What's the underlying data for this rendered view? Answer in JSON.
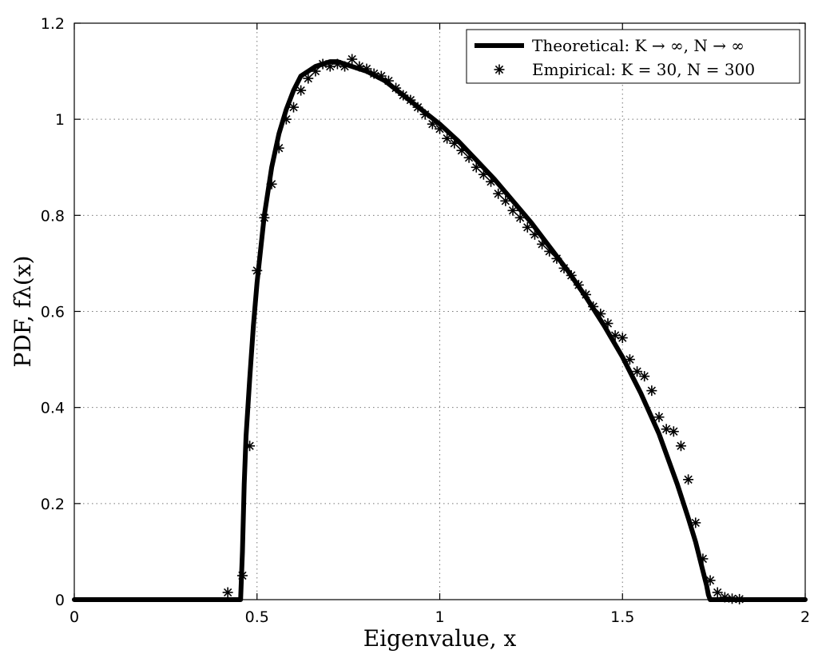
{
  "chart_data": {
    "type": "line",
    "title": "",
    "xlabel": "Eigenvalue, x",
    "ylabel": "PDF, fλ(x)",
    "xlim": [
      0,
      2
    ],
    "ylim": [
      0,
      1.2
    ],
    "xticks": [
      0,
      0.5,
      1,
      1.5,
      2
    ],
    "yticks": [
      0,
      0.2,
      0.4,
      0.6,
      0.8,
      1.0,
      1.2
    ],
    "xtick_labels": [
      "0",
      "0.5",
      "1",
      "1.5",
      "2"
    ],
    "ytick_labels": [
      "0",
      "0.2",
      "0.4",
      "0.6",
      "0.8",
      "1",
      "1.2"
    ],
    "grid": true,
    "legend_position": "top-right",
    "series": [
      {
        "name": "Theoretical: K → ∞, N → ∞",
        "style": "line",
        "color": "#000000",
        "x": [
          0,
          0.455,
          0.46,
          0.465,
          0.47,
          0.48,
          0.49,
          0.5,
          0.52,
          0.54,
          0.56,
          0.58,
          0.6,
          0.62,
          0.64,
          0.66,
          0.68,
          0.7,
          0.72,
          0.74,
          0.76,
          0.78,
          0.8,
          0.85,
          0.9,
          0.95,
          1.0,
          1.05,
          1.1,
          1.15,
          1.2,
          1.25,
          1.3,
          1.35,
          1.4,
          1.45,
          1.5,
          1.55,
          1.6,
          1.65,
          1.68,
          1.7,
          1.72,
          1.73,
          1.735,
          1.74,
          2.0
        ],
        "y": [
          0,
          0,
          0.1,
          0.24,
          0.34,
          0.46,
          0.57,
          0.66,
          0.8,
          0.9,
          0.97,
          1.02,
          1.06,
          1.09,
          1.1,
          1.11,
          1.115,
          1.12,
          1.12,
          1.115,
          1.11,
          1.105,
          1.1,
          1.08,
          1.05,
          1.02,
          0.99,
          0.955,
          0.915,
          0.875,
          0.83,
          0.785,
          0.735,
          0.685,
          0.63,
          0.57,
          0.505,
          0.43,
          0.345,
          0.24,
          0.17,
          0.12,
          0.06,
          0.03,
          0.01,
          0,
          0
        ]
      },
      {
        "name": "Empirical: K = 30, N = 300",
        "style": "marker",
        "marker": "asterisk",
        "color": "#000000",
        "x": [
          0.42,
          0.46,
          0.48,
          0.5,
          0.52,
          0.54,
          0.56,
          0.58,
          0.6,
          0.62,
          0.64,
          0.66,
          0.68,
          0.7,
          0.72,
          0.74,
          0.76,
          0.78,
          0.8,
          0.82,
          0.84,
          0.86,
          0.88,
          0.9,
          0.92,
          0.94,
          0.96,
          0.98,
          1.0,
          1.02,
          1.04,
          1.06,
          1.08,
          1.1,
          1.12,
          1.14,
          1.16,
          1.18,
          1.2,
          1.22,
          1.24,
          1.26,
          1.28,
          1.3,
          1.32,
          1.34,
          1.36,
          1.38,
          1.4,
          1.42,
          1.44,
          1.46,
          1.48,
          1.5,
          1.52,
          1.54,
          1.56,
          1.58,
          1.6,
          1.62,
          1.64,
          1.66,
          1.68,
          1.7,
          1.72,
          1.74,
          1.76,
          1.78,
          1.8,
          1.82
        ],
        "y": [
          0.015,
          0.05,
          0.32,
          0.685,
          0.795,
          0.865,
          0.94,
          1.0,
          1.025,
          1.06,
          1.085,
          1.1,
          1.115,
          1.11,
          1.115,
          1.11,
          1.125,
          1.11,
          1.105,
          1.095,
          1.09,
          1.08,
          1.065,
          1.05,
          1.04,
          1.025,
          1.01,
          0.99,
          0.98,
          0.96,
          0.95,
          0.935,
          0.92,
          0.9,
          0.885,
          0.87,
          0.845,
          0.83,
          0.81,
          0.795,
          0.775,
          0.76,
          0.74,
          0.725,
          0.71,
          0.69,
          0.675,
          0.655,
          0.635,
          0.61,
          0.595,
          0.575,
          0.55,
          0.545,
          0.5,
          0.475,
          0.465,
          0.435,
          0.38,
          0.355,
          0.35,
          0.32,
          0.25,
          0.16,
          0.085,
          0.04,
          0.015,
          0.005,
          0.002,
          0.001
        ]
      }
    ]
  }
}
